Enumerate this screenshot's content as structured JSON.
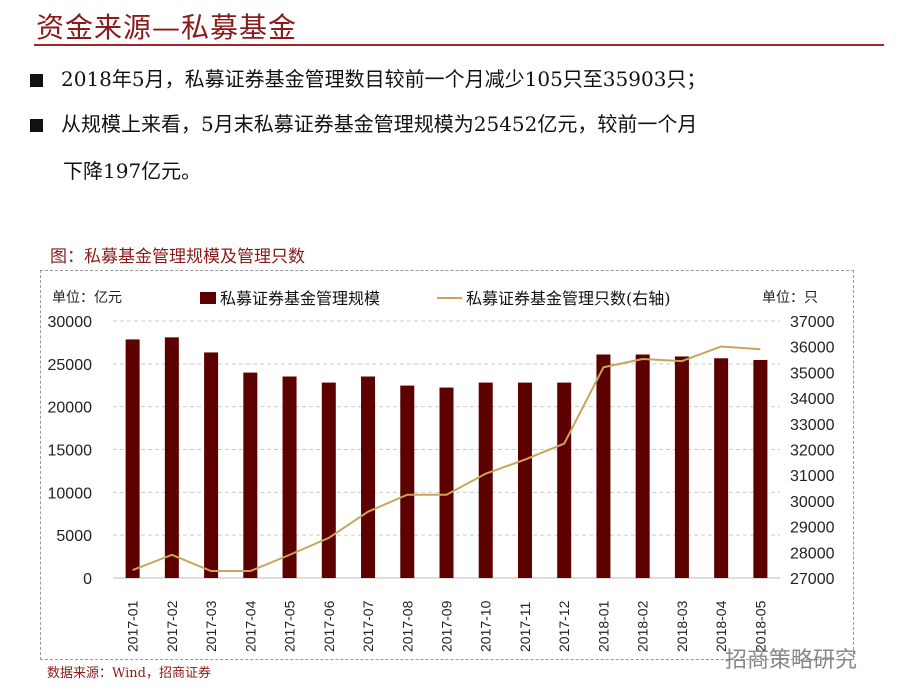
{
  "header": {
    "title": "资金来源—私募基金"
  },
  "bullets": [
    {
      "text": "2018年5月，私募证券基金管理数目较前一个月减少105只至35903只；"
    },
    {
      "text": "从规模上来看，5月末私募证券基金管理规模为25452亿元，较前一个月",
      "cont": "下降197亿元。"
    }
  ],
  "figure_title": "图：私募基金管理规模及管理只数",
  "source": "数据来源：Wind，招商证券",
  "watermark": "招商策略研究",
  "chart_data": {
    "type": "bar+line",
    "left_unit": "单位：亿元",
    "right_unit": "单位：只",
    "categories": [
      "2017-01",
      "2017-02",
      "2017-03",
      "2017-04",
      "2017-05",
      "2017-06",
      "2017-07",
      "2017-08",
      "2017-09",
      "2017-10",
      "2017-11",
      "2017-12",
      "2018-01",
      "2018-02",
      "2018-03",
      "2018-04",
      "2018-05"
    ],
    "series": [
      {
        "name": "私募证券基金管理规模",
        "type": "bar",
        "axis": "left",
        "color": "#5c0000",
        "values": [
          27850,
          28090,
          26330,
          23980,
          23520,
          22810,
          23520,
          22460,
          22230,
          22810,
          22810,
          22810,
          26090,
          26090,
          25860,
          25649,
          25452
        ]
      },
      {
        "name": "私募证券基金管理只数(右轴)",
        "type": "line",
        "axis": "right",
        "color": "#c8a55a",
        "values": [
          27310,
          27900,
          27270,
          27270,
          27900,
          28560,
          29580,
          30240,
          30240,
          31060,
          31610,
          32230,
          35200,
          35520,
          35440,
          36008,
          35903
        ]
      }
    ],
    "left_axis": {
      "min": 0,
      "max": 30000,
      "ticks": [
        0,
        5000,
        10000,
        15000,
        20000,
        25000,
        30000
      ]
    },
    "right_axis": {
      "min": 27000,
      "max": 37000,
      "ticks": [
        27000,
        28000,
        29000,
        30000,
        31000,
        32000,
        33000,
        34000,
        35000,
        36000,
        37000
      ]
    },
    "grid": true,
    "legend": "top-center"
  }
}
